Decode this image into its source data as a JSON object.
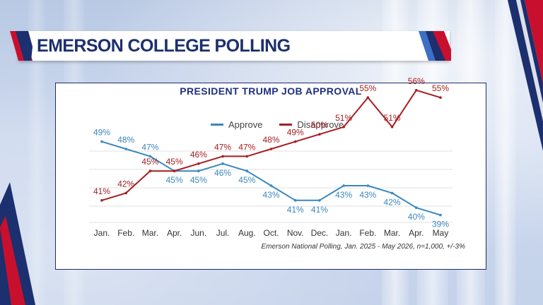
{
  "header": {
    "title": "EMERSON COLLEGE POLLING"
  },
  "chart_data": {
    "type": "line",
    "title": "PRESIDENT TRUMP JOB APPROVAL",
    "categories": [
      "Jan.",
      "Feb.",
      "Mar.",
      "Apr.",
      "Jun.",
      "Jul.",
      "Aug.",
      "Oct.",
      "Nov.",
      "Dec.",
      "Jan.",
      "Feb.",
      "Mar.",
      "Apr.",
      "May"
    ],
    "series": [
      {
        "name": "Approve",
        "color": "#3a87bf",
        "values": [
          49,
          48,
          47,
          45,
          45,
          46,
          45,
          43,
          41,
          41,
          43,
          43,
          42,
          40,
          39
        ]
      },
      {
        "name": "Disapprove",
        "color": "#a51e22",
        "values": [
          41,
          42,
          45,
          45,
          46,
          47,
          47,
          48,
          49,
          50,
          51,
          55,
          51,
          56,
          55
        ]
      }
    ],
    "value_suffix": "%",
    "ylim": [
      35,
      60
    ],
    "grid": true,
    "legend_position": "top-center",
    "source_note": "Emerson National Polling, Jan. 2025 - May 2026, n=1,000, +/-3%"
  },
  "colors": {
    "navy": "#1c2f6e",
    "red": "#c8102e",
    "approve": "#3a87bf",
    "disapprove": "#a51e22"
  }
}
